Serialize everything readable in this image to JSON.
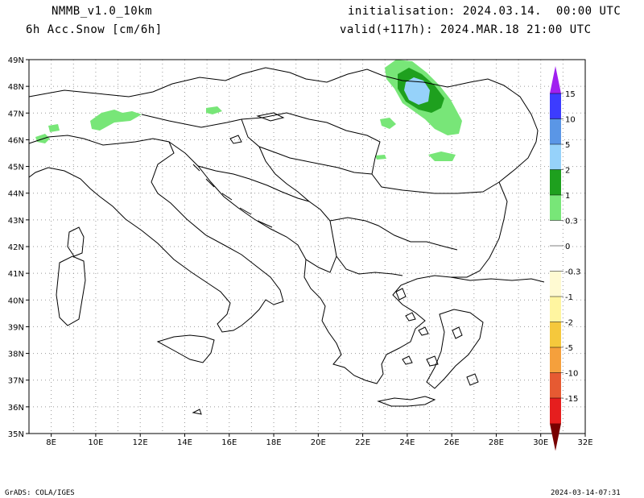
{
  "header": {
    "model": "NMMB_v1.0_10km",
    "field": "6h Acc.Snow [cm/6h]",
    "init": "initialisation: 2024.03.14.  00:00 UTC",
    "valid": "valid(+117h): 2024.MAR.18 21:00 UTC"
  },
  "footer": {
    "left": "GrADS: COLA/IGES",
    "right": "2024-03-14-07:31"
  },
  "axes": {
    "lon_labels": [
      "8E",
      "10E",
      "12E",
      "14E",
      "16E",
      "18E",
      "20E",
      "22E",
      "24E",
      "26E",
      "28E",
      "30E",
      "32E"
    ],
    "lat_labels": [
      "49N",
      "48N",
      "47N",
      "46N",
      "45N",
      "44N",
      "43N",
      "42N",
      "41N",
      "40N",
      "39N",
      "38N",
      "37N",
      "36N",
      "35N"
    ]
  },
  "colorbar": {
    "labels": [
      "15",
      "10",
      "5",
      "2",
      "1",
      "0.3",
      "0",
      "-0.3",
      "-1",
      "-2",
      "-5",
      "-10",
      "-15"
    ],
    "colors_top": [
      "#a020f0",
      "#3c3cff",
      "#5a96e6",
      "#96d2fa",
      "#1ea01e",
      "#78e678"
    ],
    "colors_bottom": [
      "#fffad2",
      "#fff5a0",
      "#f5c83c",
      "#f5a03c",
      "#e65a32",
      "#e61e1e",
      "#a01e1e"
    ],
    "arrow_top_color": "#a020f0",
    "arrow_bottom_color": "#780000"
  },
  "snow_colors": {
    "light": "#78e678",
    "medium": "#1ea01e",
    "heavy": "#96d2fa"
  }
}
